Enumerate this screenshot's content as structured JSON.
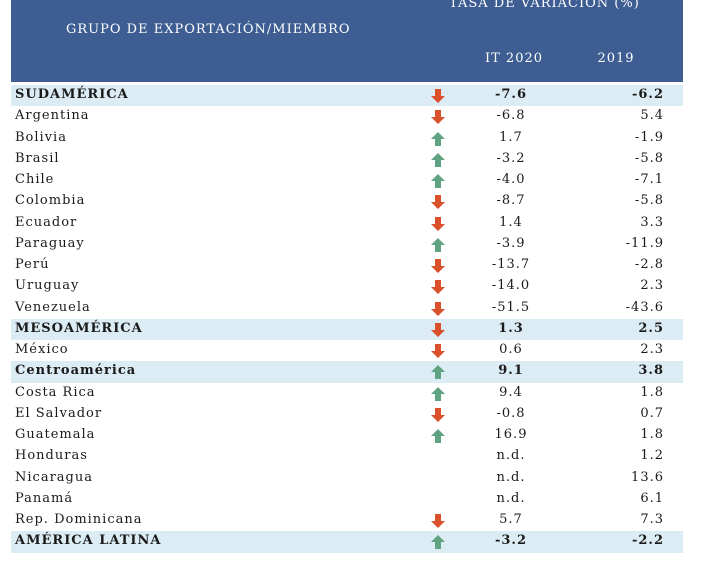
{
  "header": {
    "group_label": "GRUPO DE EXPORTACIÓN/MIEMBRO",
    "rate_label": "TASA DE VARIACIÓN (%)",
    "year1": "IT 2020",
    "year2": "2019"
  },
  "colors": {
    "header_bg": "#3d5d93",
    "group_bg": "#dcecf4",
    "arrow_up": "#5fa383",
    "arrow_down": "#d9502a"
  },
  "rows": [
    {
      "name": "SUDAMÉRICA",
      "group": true,
      "arrow": "down",
      "v1": "-7.6",
      "v2": "-6.2"
    },
    {
      "name": "Argentina",
      "group": false,
      "arrow": "down",
      "v1": "-6.8",
      "v2": "5.4"
    },
    {
      "name": "Bolivia",
      "group": false,
      "arrow": "up",
      "v1": "1.7",
      "v2": "-1.9"
    },
    {
      "name": "Brasil",
      "group": false,
      "arrow": "up",
      "v1": "-3.2",
      "v2": "-5.8"
    },
    {
      "name": "Chile",
      "group": false,
      "arrow": "up",
      "v1": "-4.0",
      "v2": "-7.1"
    },
    {
      "name": "Colombia",
      "group": false,
      "arrow": "down",
      "v1": "-8.7",
      "v2": "-5.8"
    },
    {
      "name": "Ecuador",
      "group": false,
      "arrow": "down",
      "v1": "1.4",
      "v2": "3.3"
    },
    {
      "name": "Paraguay",
      "group": false,
      "arrow": "up",
      "v1": "-3.9",
      "v2": "-11.9"
    },
    {
      "name": "Perú",
      "group": false,
      "arrow": "down",
      "v1": "-13.7",
      "v2": "-2.8"
    },
    {
      "name": "Uruguay",
      "group": false,
      "arrow": "down",
      "v1": "-14.0",
      "v2": "2.3"
    },
    {
      "name": "Venezuela",
      "group": false,
      "arrow": "down",
      "v1": "-51.5",
      "v2": "-43.6"
    },
    {
      "name": "MESOAMÉRICA",
      "group": true,
      "arrow": "down",
      "v1": "1.3",
      "v2": "2.5"
    },
    {
      "name": "México",
      "group": false,
      "arrow": "down",
      "v1": "0.6",
      "v2": "2.3"
    },
    {
      "name": "Centroamérica",
      "group": true,
      "arrow": "up",
      "v1": "9.1",
      "v2": "3.8"
    },
    {
      "name": "Costa Rica",
      "group": false,
      "arrow": "up",
      "v1": "9.4",
      "v2": "1.8"
    },
    {
      "name": "El Salvador",
      "group": false,
      "arrow": "down",
      "v1": "-0.8",
      "v2": "0.7"
    },
    {
      "name": "Guatemala",
      "group": false,
      "arrow": "up",
      "v1": "16.9",
      "v2": "1.8"
    },
    {
      "name": "Honduras",
      "group": false,
      "arrow": "",
      "v1": "n.d.",
      "v2": "1.2"
    },
    {
      "name": "Nicaragua",
      "group": false,
      "arrow": "",
      "v1": "n.d.",
      "v2": "13.6"
    },
    {
      "name": "Panamá",
      "group": false,
      "arrow": "",
      "v1": "n.d.",
      "v2": "6.1"
    },
    {
      "name": "Rep. Dominicana",
      "group": false,
      "arrow": "down",
      "v1": "5.7",
      "v2": "7.3"
    },
    {
      "name": "AMÉRICA LATINA",
      "group": true,
      "arrow": "up",
      "v1": "-3.2",
      "v2": "-2.2"
    }
  ]
}
